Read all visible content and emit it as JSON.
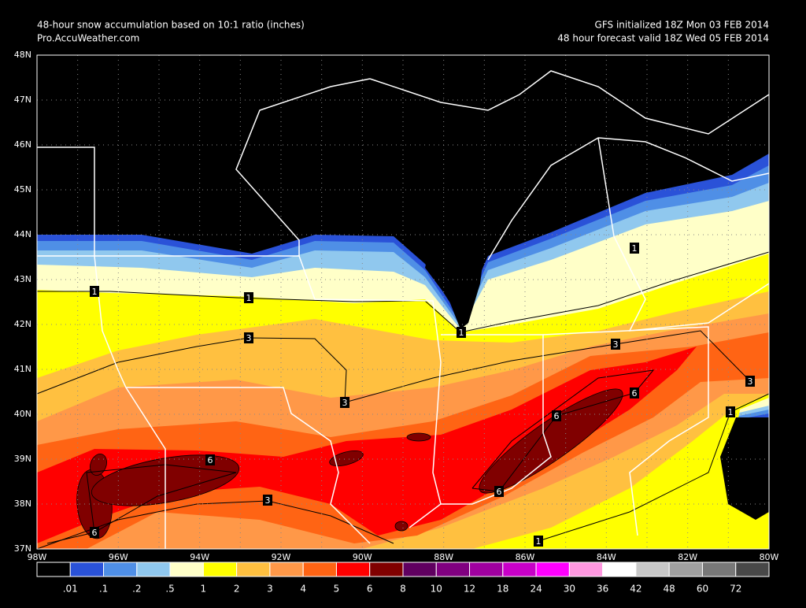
{
  "header": {
    "title": "48-hour snow accumulation based on 10:1 ratio (inches)",
    "source": "Pro.AccuWeather.com",
    "init": "GFS initialized 18Z Mon 03 FEB 2014",
    "valid": "48 hour forecast valid 18Z Wed 05 FEB 2014"
  },
  "map": {
    "lat_labels": [
      "48N",
      "47N",
      "46N",
      "45N",
      "44N",
      "43N",
      "42N",
      "41N",
      "40N",
      "39N",
      "38N",
      "37N"
    ],
    "lon_labels": [
      "98W",
      "96W",
      "94W",
      "92W",
      "90W",
      "88W",
      "86W",
      "84W",
      "82W",
      "80W"
    ],
    "contour_labels": [
      "1",
      "1",
      "1",
      "1",
      "1",
      "1",
      "3",
      "3",
      "3",
      "3",
      "3",
      "6",
      "6",
      "6",
      "6",
      "6"
    ]
  },
  "legend": {
    "colors": [
      "#000000",
      "#2a52d8",
      "#4f8fe6",
      "#90c8ee",
      "#ffffc8",
      "#ffff00",
      "#ffc040",
      "#ff9848",
      "#ff6414",
      "#ff0000",
      "#800000",
      "#600060",
      "#800080",
      "#a000a0",
      "#c800c8",
      "#ff00ff",
      "#ff98e0",
      "#ffffff",
      "#c8c8c8",
      "#a0a0a0",
      "#787878",
      "#484848"
    ],
    "labels": [
      ".01",
      ".1",
      ".2",
      ".5",
      "1",
      "2",
      "3",
      "4",
      "5",
      "6",
      "8",
      "10",
      "12",
      "18",
      "24",
      "30",
      "36",
      "42",
      "48",
      "60",
      "72"
    ]
  }
}
